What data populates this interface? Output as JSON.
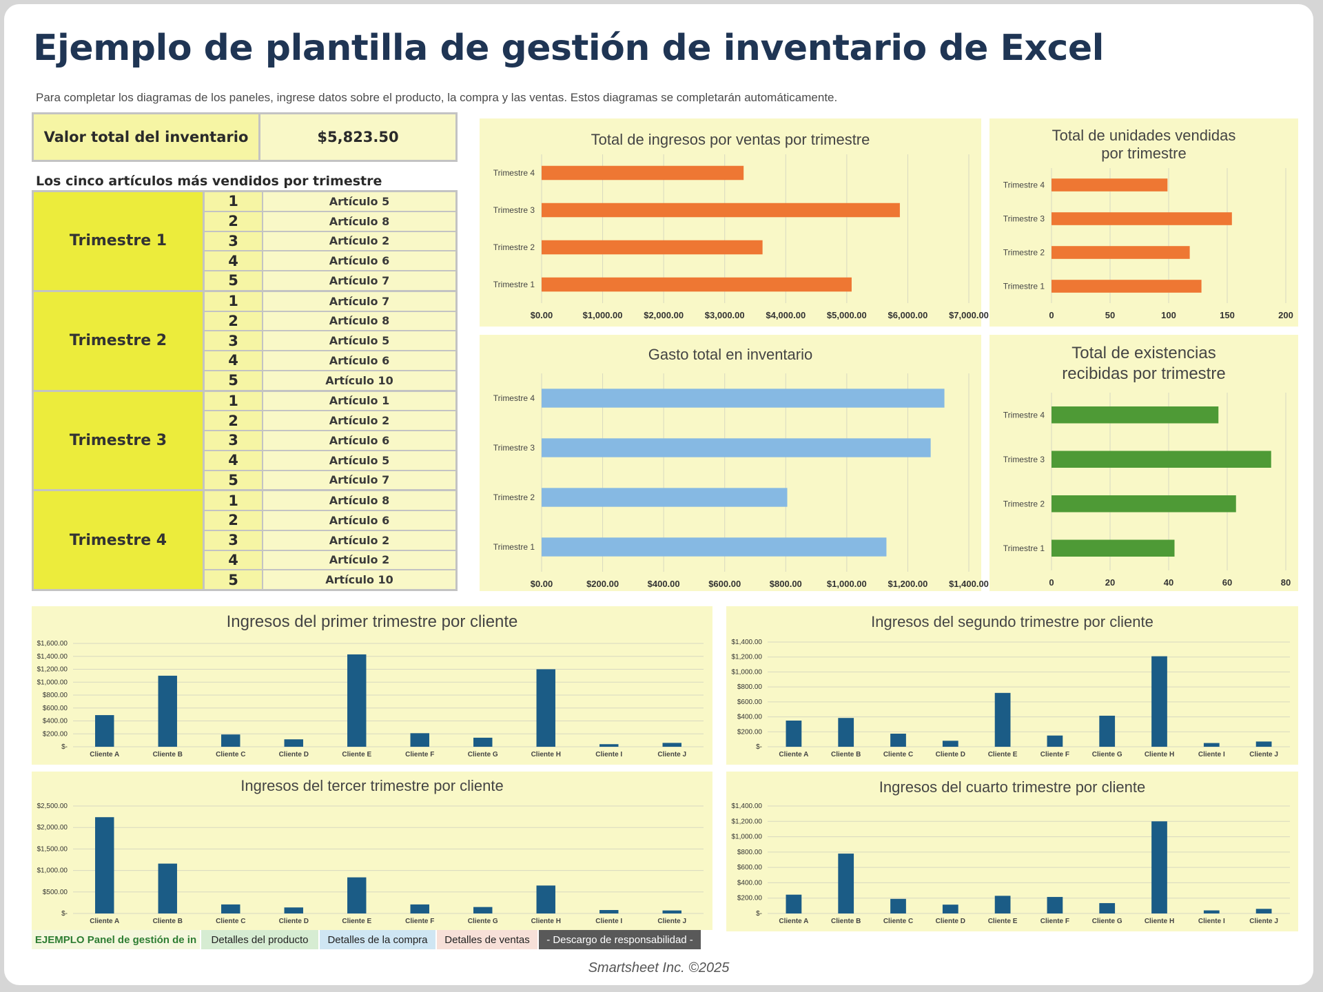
{
  "header": {
    "title": "Ejemplo de plantilla de gestión de inventario de Excel",
    "subtitle": "Para completar los diagramas de los paneles, ingrese datos sobre el producto, la compra y las ventas. Estos diagramas se completarán automáticamente."
  },
  "inventory_total": {
    "label": "Valor total del inventario",
    "value": "$5,823.50"
  },
  "top5": {
    "heading": "Los cinco artículos más vendidos por trimestre",
    "quarters": [
      {
        "label": "Trimestre 1",
        "ranks": [
          "1",
          "2",
          "3",
          "4",
          "5"
        ],
        "items": [
          "Artículo 5",
          "Artículo 8",
          "Artículo 2",
          "Artículo 6",
          "Artículo 7"
        ]
      },
      {
        "label": "Trimestre 2",
        "ranks": [
          "1",
          "2",
          "3",
          "4",
          "5"
        ],
        "items": [
          "Artículo 7",
          "Artículo 8",
          "Artículo 5",
          "Artículo 6",
          "Artículo 10"
        ]
      },
      {
        "label": "Trimestre 3",
        "ranks": [
          "1",
          "2",
          "3",
          "4",
          "5"
        ],
        "items": [
          "Artículo 1",
          "Artículo 2",
          "Artículo 6",
          "Artículo 5",
          "Artículo 7"
        ]
      },
      {
        "label": "Trimestre 4",
        "ranks": [
          "1",
          "2",
          "3",
          "4",
          "5"
        ],
        "items": [
          "Artículo 8",
          "Artículo 6",
          "Artículo 2",
          "Artículo 2",
          "Artículo 10"
        ]
      }
    ]
  },
  "colors": {
    "orange": "#ee7733",
    "lightblue": "#86b9e3",
    "green": "#4e9a36",
    "navy": "#1b5c86",
    "panel": "#f9f8c7",
    "grid": "#d8d8c0"
  },
  "chart_data": [
    {
      "id": "sales_revenue",
      "type": "bar",
      "orientation": "horizontal",
      "title": [
        "Total de ingresos por ventas por trimestre"
      ],
      "categories": [
        "Trimestre 1",
        "Trimestre 2",
        "Trimestre 3",
        "Trimestre 4"
      ],
      "values": [
        5080,
        3620,
        5870,
        3310
      ],
      "xlim": [
        0,
        7000
      ],
      "ticks": [
        0,
        1000,
        2000,
        3000,
        4000,
        5000,
        6000,
        7000
      ],
      "tick_labels": [
        "$0.00",
        "$1,000.00",
        "$2,000.00",
        "$3,000.00",
        "$4,000.00",
        "$5,000.00",
        "$6,000.00",
        "$7,000.00"
      ],
      "color": "#ee7733",
      "grid": true
    },
    {
      "id": "units_sold",
      "type": "bar",
      "orientation": "horizontal",
      "title": [
        "Total de unidades vendidas",
        "por trimestre"
      ],
      "categories": [
        "Trimestre 1",
        "Trimestre 2",
        "Trimestre 3",
        "Trimestre 4"
      ],
      "values": [
        128,
        118,
        154,
        99
      ],
      "xlim": [
        0,
        200
      ],
      "ticks": [
        0,
        50,
        100,
        150,
        200
      ],
      "tick_labels": [
        "0",
        "50",
        "100",
        "150",
        "200"
      ],
      "color": "#ee7733",
      "grid": true
    },
    {
      "id": "inventory_spend",
      "type": "bar",
      "orientation": "horizontal",
      "title": [
        "Gasto total en inventario"
      ],
      "categories": [
        "Trimestre 1",
        "Trimestre 2",
        "Trimestre 3",
        "Trimestre 4"
      ],
      "values": [
        1130,
        805,
        1275,
        1320
      ],
      "xlim": [
        0,
        1400
      ],
      "ticks": [
        0,
        200,
        400,
        600,
        800,
        1000,
        1200,
        1400
      ],
      "tick_labels": [
        "$0.00",
        "$200.00",
        "$400.00",
        "$600.00",
        "$800.00",
        "$1,000.00",
        "$1,200.00",
        "$1,400.00"
      ],
      "color": "#86b9e3",
      "grid": true
    },
    {
      "id": "stock_received",
      "type": "bar",
      "orientation": "horizontal",
      "title": [
        "Total de existencias",
        "recibidas por trimestre"
      ],
      "categories": [
        "Trimestre 1",
        "Trimestre 2",
        "Trimestre 3",
        "Trimestre 4"
      ],
      "values": [
        42,
        63,
        75,
        57
      ],
      "xlim": [
        0,
        80
      ],
      "ticks": [
        0,
        20,
        40,
        60,
        80
      ],
      "tick_labels": [
        "0",
        "20",
        "40",
        "60",
        "80"
      ],
      "color": "#4e9a36",
      "grid": true
    },
    {
      "id": "q1_clients",
      "type": "bar",
      "orientation": "vertical",
      "title": [
        "Ingresos del primer trimestre por cliente"
      ],
      "categories": [
        "Cliente A",
        "Cliente B",
        "Cliente C",
        "Cliente D",
        "Cliente E",
        "Cliente F",
        "Cliente G",
        "Cliente H",
        "Cliente I",
        "Cliente J"
      ],
      "values": [
        490,
        1100,
        190,
        115,
        1430,
        210,
        140,
        1200,
        40,
        60
      ],
      "ylim": [
        0,
        1600
      ],
      "ticks": [
        0,
        200,
        400,
        600,
        800,
        1000,
        1200,
        1400,
        1600
      ],
      "tick_labels": [
        "$-",
        "$200.00",
        "$400.00",
        "$600.00",
        "$800.00",
        "$1,000.00",
        "$1,200.00",
        "$1,400.00",
        "$1,600.00"
      ],
      "color": "#1b5c86",
      "grid": true
    },
    {
      "id": "q2_clients",
      "type": "bar",
      "orientation": "vertical",
      "title": [
        "Ingresos del segundo trimestre por cliente"
      ],
      "categories": [
        "Cliente A",
        "Cliente B",
        "Cliente C",
        "Cliente D",
        "Cliente E",
        "Cliente F",
        "Cliente G",
        "Cliente H",
        "Cliente I",
        "Cliente J"
      ],
      "values": [
        350,
        385,
        175,
        80,
        720,
        150,
        415,
        1210,
        50,
        70
      ],
      "ylim": [
        0,
        1400
      ],
      "ticks": [
        0,
        200,
        400,
        600,
        800,
        1000,
        1200,
        1400
      ],
      "tick_labels": [
        "$-",
        "$200.00",
        "$400.00",
        "$600.00",
        "$800.00",
        "$1,000.00",
        "$1,200.00",
        "$1,400.00"
      ],
      "color": "#1b5c86",
      "grid": true
    },
    {
      "id": "q3_clients",
      "type": "bar",
      "orientation": "vertical",
      "title": [
        "Ingresos del tercer trimestre por cliente"
      ],
      "categories": [
        "Cliente A",
        "Cliente B",
        "Cliente C",
        "Cliente D",
        "Cliente E",
        "Cliente F",
        "Cliente G",
        "Cliente H",
        "Cliente I",
        "Cliente J"
      ],
      "values": [
        2240,
        1160,
        210,
        140,
        840,
        210,
        150,
        650,
        80,
        70
      ],
      "ylim": [
        0,
        2500
      ],
      "ticks": [
        0,
        500,
        1000,
        1500,
        2000,
        2500
      ],
      "tick_labels": [
        "$-",
        "$500.00",
        "$1,000.00",
        "$1,500.00",
        "$2,000.00",
        "$2,500.00"
      ],
      "color": "#1b5c86",
      "grid": true
    },
    {
      "id": "q4_clients",
      "type": "bar",
      "orientation": "vertical",
      "title": [
        "Ingresos del cuarto trimestre por cliente"
      ],
      "categories": [
        "Cliente A",
        "Cliente B",
        "Cliente C",
        "Cliente D",
        "Cliente E",
        "Cliente F",
        "Cliente G",
        "Cliente H",
        "Cliente I",
        "Cliente J"
      ],
      "values": [
        245,
        780,
        190,
        115,
        230,
        215,
        135,
        1200,
        40,
        60
      ],
      "ylim": [
        0,
        1400
      ],
      "ticks": [
        0,
        200,
        400,
        600,
        800,
        1000,
        1200,
        1400
      ],
      "tick_labels": [
        "$-",
        "$200.00",
        "$400.00",
        "$600.00",
        "$800.00",
        "$1,000.00",
        "$1,200.00",
        "$1,400.00"
      ],
      "color": "#1b5c86",
      "grid": true
    }
  ],
  "tabs": [
    {
      "label": "EJEMPLO Panel de gestión de in",
      "bg": "#f4f7dc",
      "fg": "#2e7d32"
    },
    {
      "label": "Detalles del producto",
      "bg": "#d6ecd2",
      "fg": "#222222"
    },
    {
      "label": "Detalles de la compra",
      "bg": "#cfe6f3",
      "fg": "#222222"
    },
    {
      "label": "Detalles de ventas",
      "bg": "#f7e0d8",
      "fg": "#222222"
    },
    {
      "label": "- Descargo de responsabilidad -",
      "bg": "#595959",
      "fg": "#ffffff"
    }
  ],
  "footer": {
    "text": "Smartsheet Inc. ©2025"
  }
}
